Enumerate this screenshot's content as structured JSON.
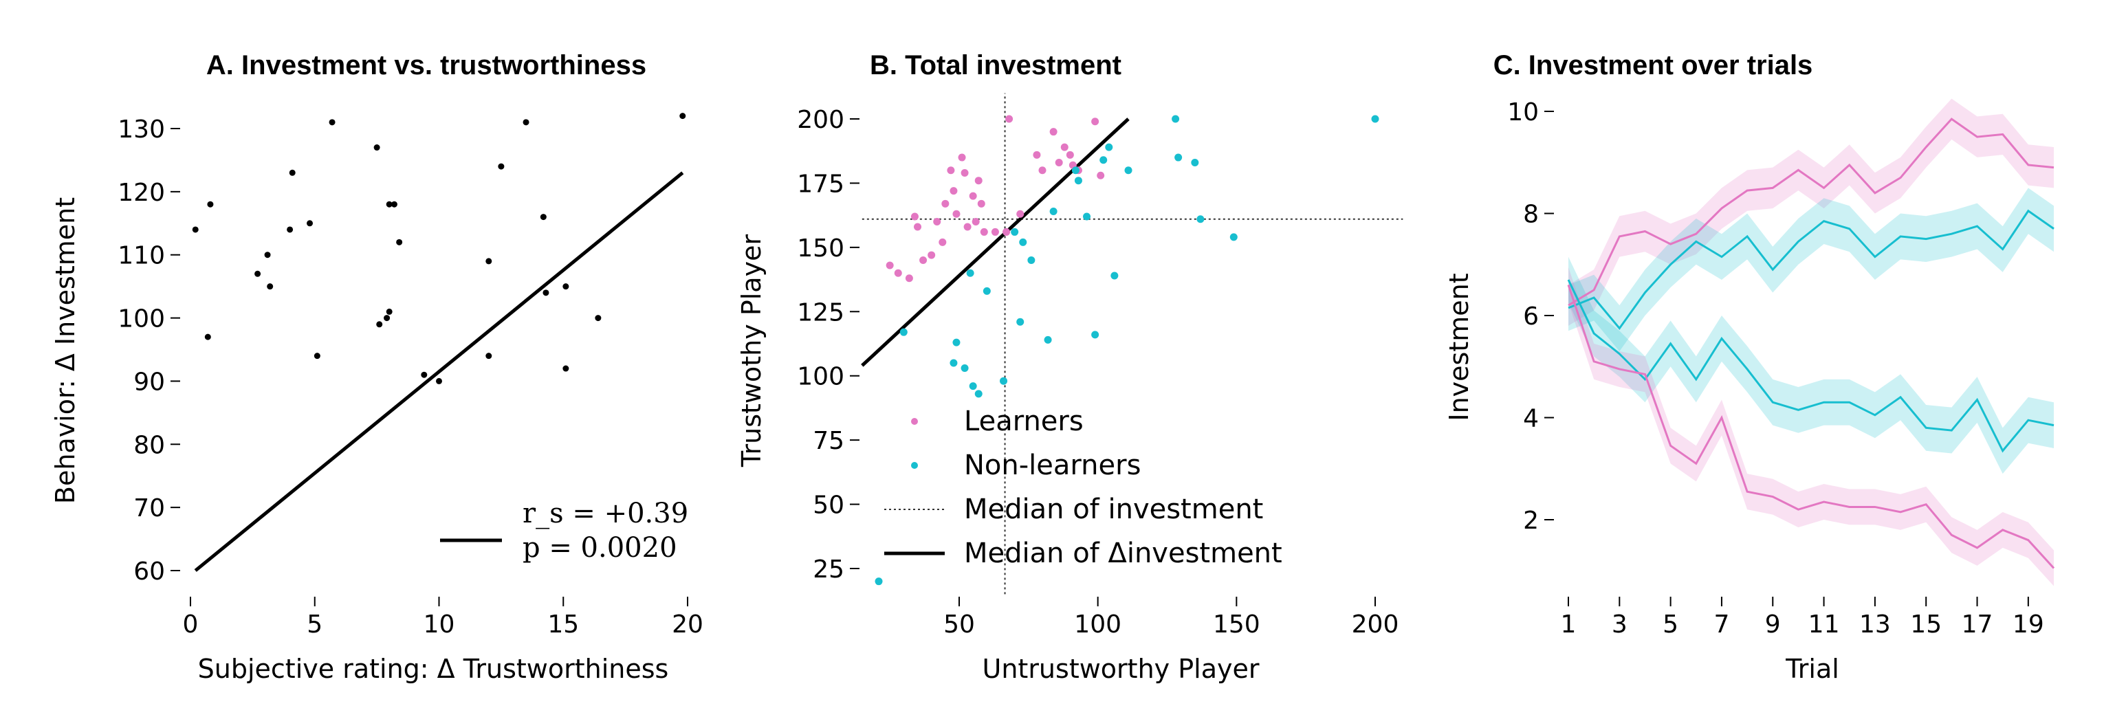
{
  "colors": {
    "learners": "#e377c2",
    "nonlearners": "#17becf",
    "black": "#000000"
  },
  "chart_data": [
    {
      "type": "scatter",
      "title": "A. Investment vs. trustworthiness",
      "xlabel": "Subjective rating: Δ Trustworthiness",
      "ylabel": "Behavior: Δ Investment",
      "xlim": [
        -0.5,
        20.5
      ],
      "ylim": [
        56,
        136
      ],
      "xticks": [
        0,
        5,
        10,
        15,
        20
      ],
      "yticks": [
        60,
        70,
        80,
        90,
        100,
        110,
        120,
        130
      ],
      "grid": false,
      "points": [
        [
          0.2,
          114
        ],
        [
          0.7,
          97
        ],
        [
          0.8,
          118
        ],
        [
          2.7,
          107
        ],
        [
          3.1,
          110
        ],
        [
          3.2,
          105
        ],
        [
          4.0,
          114
        ],
        [
          4.1,
          123
        ],
        [
          4.8,
          115
        ],
        [
          5.1,
          94
        ],
        [
          5.7,
          131
        ],
        [
          7.5,
          127
        ],
        [
          7.6,
          99
        ],
        [
          7.9,
          100
        ],
        [
          8.0,
          101
        ],
        [
          8.0,
          118
        ],
        [
          8.2,
          118
        ],
        [
          8.4,
          112
        ],
        [
          9.4,
          91
        ],
        [
          10.0,
          90
        ],
        [
          12.0,
          109
        ],
        [
          12.0,
          94
        ],
        [
          12.5,
          124
        ],
        [
          13.5,
          131
        ],
        [
          14.2,
          116
        ],
        [
          14.3,
          104
        ],
        [
          15.1,
          105
        ],
        [
          15.1,
          92
        ],
        [
          16.4,
          100
        ],
        [
          19.8,
          132
        ]
      ],
      "fit_line": {
        "x": [
          0.2,
          19.8
        ],
        "y": [
          60,
          123
        ]
      },
      "legend": {
        "placement": "lower-right",
        "line_label": "",
        "stat_rs": "r_s = +0.39",
        "stat_p": "p = 0.0020"
      }
    },
    {
      "type": "scatter",
      "title": "B. Total investment",
      "xlabel": "Untrustworthy Player",
      "ylabel": "Trustwothy Player",
      "xlim": [
        15,
        210
      ],
      "ylim": [
        15,
        210
      ],
      "xticks": [
        50,
        100,
        150,
        200
      ],
      "yticks": [
        25,
        50,
        75,
        100,
        125,
        150,
        175,
        200
      ],
      "grid": false,
      "series": [
        {
          "name": "Learners",
          "points": [
            [
              25,
              143
            ],
            [
              28,
              140
            ],
            [
              32,
              138
            ],
            [
              34,
              162
            ],
            [
              35,
              158
            ],
            [
              37,
              145
            ],
            [
              40,
              147
            ],
            [
              42,
              160
            ],
            [
              44,
              152
            ],
            [
              45,
              167
            ],
            [
              47,
              180
            ],
            [
              48,
              172
            ],
            [
              49,
              163
            ],
            [
              51,
              185
            ],
            [
              52,
              179
            ],
            [
              53,
              158
            ],
            [
              55,
              170
            ],
            [
              56,
              160
            ],
            [
              57,
              176
            ],
            [
              58,
              167
            ],
            [
              59,
              156
            ],
            [
              63,
              156
            ],
            [
              67,
              156
            ],
            [
              68,
              200
            ],
            [
              72,
              163
            ],
            [
              78,
              186
            ],
            [
              80,
              180
            ],
            [
              84,
              195
            ],
            [
              86,
              183
            ],
            [
              88,
              189
            ],
            [
              90,
              186
            ],
            [
              91,
              182
            ],
            [
              93,
              180
            ],
            [
              99,
              199
            ],
            [
              101,
              178
            ]
          ]
        },
        {
          "name": "Non-learners",
          "points": [
            [
              21,
              20
            ],
            [
              30,
              117
            ],
            [
              48,
              105
            ],
            [
              49,
              113
            ],
            [
              52,
              103
            ],
            [
              54,
              140
            ],
            [
              55,
              96
            ],
            [
              57,
              93
            ],
            [
              60,
              133
            ],
            [
              66,
              98
            ],
            [
              70,
              156
            ],
            [
              72,
              121
            ],
            [
              73,
              152
            ],
            [
              76,
              145
            ],
            [
              82,
              114
            ],
            [
              84,
              164
            ],
            [
              92,
              180
            ],
            [
              93,
              176
            ],
            [
              96,
              162
            ],
            [
              99,
              116
            ],
            [
              102,
              184
            ],
            [
              104,
              189
            ],
            [
              106,
              139
            ],
            [
              111,
              180
            ],
            [
              128,
              200
            ],
            [
              129,
              185
            ],
            [
              135,
              183
            ],
            [
              137,
              161
            ],
            [
              149,
              154
            ],
            [
              200,
              200
            ]
          ]
        }
      ],
      "median_investment": {
        "x": 66.5,
        "y": 161
      },
      "median_delta_line": {
        "x": [
          15,
          111
        ],
        "y": [
          104,
          200
        ]
      },
      "legend": {
        "placement": "lower-left",
        "entries": [
          "Learners",
          "Non-learners",
          "Median of investment",
          "Median of Δinvestment"
        ]
      }
    },
    {
      "type": "line",
      "title": "C. Investment over trials",
      "xlabel": "Trial",
      "ylabel": "Investment",
      "xlim": [
        0.7,
        20.2
      ],
      "ylim": [
        0.9,
        10.4
      ],
      "xticks": [
        1,
        3,
        5,
        7,
        9,
        11,
        13,
        15,
        17,
        19
      ],
      "yticks": [
        2,
        4,
        6,
        8,
        10
      ],
      "grid": false,
      "x": [
        1,
        2,
        3,
        4,
        5,
        6,
        7,
        8,
        9,
        10,
        11,
        12,
        13,
        14,
        15,
        16,
        17,
        18,
        19,
        20
      ],
      "series": [
        {
          "name": "",
          "color": "learners",
          "band": 0.4,
          "values": [
            6.2,
            6.5,
            7.55,
            7.65,
            7.4,
            7.6,
            8.1,
            8.45,
            8.5,
            8.85,
            8.5,
            8.95,
            8.4,
            8.7,
            9.3,
            9.85,
            9.5,
            9.55,
            8.95,
            8.9
          ]
        },
        {
          "name": "",
          "color": "nonlearners",
          "band": 0.45,
          "values": [
            6.15,
            6.35,
            5.75,
            6.45,
            7.0,
            7.45,
            7.15,
            7.55,
            6.9,
            7.45,
            7.85,
            7.7,
            7.15,
            7.55,
            7.5,
            7.6,
            7.75,
            7.3,
            8.05,
            7.7
          ]
        },
        {
          "name": "",
          "color": "nonlearners",
          "band": 0.45,
          "values": [
            6.7,
            5.65,
            5.25,
            4.75,
            5.45,
            4.75,
            5.55,
            4.95,
            4.3,
            4.15,
            4.3,
            4.3,
            4.05,
            4.4,
            3.8,
            3.75,
            4.35,
            3.35,
            3.95,
            3.85
          ]
        },
        {
          "name": "",
          "color": "learners",
          "band": 0.35,
          "values": [
            6.6,
            5.1,
            4.95,
            4.85,
            3.45,
            3.1,
            4.0,
            2.55,
            2.45,
            2.2,
            2.35,
            2.25,
            2.25,
            2.15,
            2.3,
            1.7,
            1.45,
            1.8,
            1.6,
            1.05
          ]
        }
      ]
    }
  ]
}
